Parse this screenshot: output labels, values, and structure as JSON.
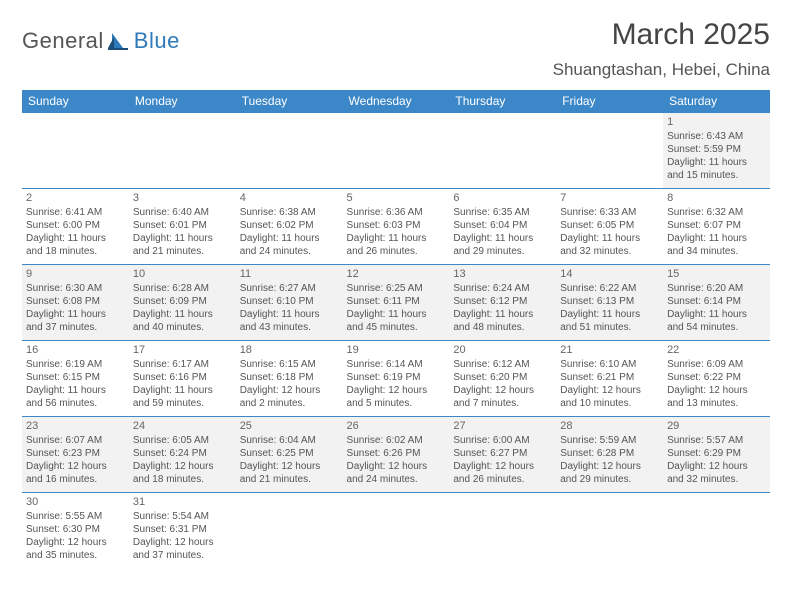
{
  "logo": {
    "part1": "General",
    "part2": "Blue"
  },
  "title": "March 2025",
  "location": "Shuangtashan, Hebei, China",
  "colors": {
    "header_bg": "#3b87c8",
    "header_fg": "#ffffff",
    "row_alt_bg": "#f2f2f2",
    "border": "#3b87c8",
    "logo_gray": "#555555",
    "logo_blue": "#2f7ab8"
  },
  "weekdays": [
    "Sunday",
    "Monday",
    "Tuesday",
    "Wednesday",
    "Thursday",
    "Friday",
    "Saturday"
  ],
  "first_weekday_index": 6,
  "days": [
    {
      "n": 1,
      "sunrise": "6:43 AM",
      "sunset": "5:59 PM",
      "daylight": "11 hours and 15 minutes."
    },
    {
      "n": 2,
      "sunrise": "6:41 AM",
      "sunset": "6:00 PM",
      "daylight": "11 hours and 18 minutes."
    },
    {
      "n": 3,
      "sunrise": "6:40 AM",
      "sunset": "6:01 PM",
      "daylight": "11 hours and 21 minutes."
    },
    {
      "n": 4,
      "sunrise": "6:38 AM",
      "sunset": "6:02 PM",
      "daylight": "11 hours and 24 minutes."
    },
    {
      "n": 5,
      "sunrise": "6:36 AM",
      "sunset": "6:03 PM",
      "daylight": "11 hours and 26 minutes."
    },
    {
      "n": 6,
      "sunrise": "6:35 AM",
      "sunset": "6:04 PM",
      "daylight": "11 hours and 29 minutes."
    },
    {
      "n": 7,
      "sunrise": "6:33 AM",
      "sunset": "6:05 PM",
      "daylight": "11 hours and 32 minutes."
    },
    {
      "n": 8,
      "sunrise": "6:32 AM",
      "sunset": "6:07 PM",
      "daylight": "11 hours and 34 minutes."
    },
    {
      "n": 9,
      "sunrise": "6:30 AM",
      "sunset": "6:08 PM",
      "daylight": "11 hours and 37 minutes."
    },
    {
      "n": 10,
      "sunrise": "6:28 AM",
      "sunset": "6:09 PM",
      "daylight": "11 hours and 40 minutes."
    },
    {
      "n": 11,
      "sunrise": "6:27 AM",
      "sunset": "6:10 PM",
      "daylight": "11 hours and 43 minutes."
    },
    {
      "n": 12,
      "sunrise": "6:25 AM",
      "sunset": "6:11 PM",
      "daylight": "11 hours and 45 minutes."
    },
    {
      "n": 13,
      "sunrise": "6:24 AM",
      "sunset": "6:12 PM",
      "daylight": "11 hours and 48 minutes."
    },
    {
      "n": 14,
      "sunrise": "6:22 AM",
      "sunset": "6:13 PM",
      "daylight": "11 hours and 51 minutes."
    },
    {
      "n": 15,
      "sunrise": "6:20 AM",
      "sunset": "6:14 PM",
      "daylight": "11 hours and 54 minutes."
    },
    {
      "n": 16,
      "sunrise": "6:19 AM",
      "sunset": "6:15 PM",
      "daylight": "11 hours and 56 minutes."
    },
    {
      "n": 17,
      "sunrise": "6:17 AM",
      "sunset": "6:16 PM",
      "daylight": "11 hours and 59 minutes."
    },
    {
      "n": 18,
      "sunrise": "6:15 AM",
      "sunset": "6:18 PM",
      "daylight": "12 hours and 2 minutes."
    },
    {
      "n": 19,
      "sunrise": "6:14 AM",
      "sunset": "6:19 PM",
      "daylight": "12 hours and 5 minutes."
    },
    {
      "n": 20,
      "sunrise": "6:12 AM",
      "sunset": "6:20 PM",
      "daylight": "12 hours and 7 minutes."
    },
    {
      "n": 21,
      "sunrise": "6:10 AM",
      "sunset": "6:21 PM",
      "daylight": "12 hours and 10 minutes."
    },
    {
      "n": 22,
      "sunrise": "6:09 AM",
      "sunset": "6:22 PM",
      "daylight": "12 hours and 13 minutes."
    },
    {
      "n": 23,
      "sunrise": "6:07 AM",
      "sunset": "6:23 PM",
      "daylight": "12 hours and 16 minutes."
    },
    {
      "n": 24,
      "sunrise": "6:05 AM",
      "sunset": "6:24 PM",
      "daylight": "12 hours and 18 minutes."
    },
    {
      "n": 25,
      "sunrise": "6:04 AM",
      "sunset": "6:25 PM",
      "daylight": "12 hours and 21 minutes."
    },
    {
      "n": 26,
      "sunrise": "6:02 AM",
      "sunset": "6:26 PM",
      "daylight": "12 hours and 24 minutes."
    },
    {
      "n": 27,
      "sunrise": "6:00 AM",
      "sunset": "6:27 PM",
      "daylight": "12 hours and 26 minutes."
    },
    {
      "n": 28,
      "sunrise": "5:59 AM",
      "sunset": "6:28 PM",
      "daylight": "12 hours and 29 minutes."
    },
    {
      "n": 29,
      "sunrise": "5:57 AM",
      "sunset": "6:29 PM",
      "daylight": "12 hours and 32 minutes."
    },
    {
      "n": 30,
      "sunrise": "5:55 AM",
      "sunset": "6:30 PM",
      "daylight": "12 hours and 35 minutes."
    },
    {
      "n": 31,
      "sunrise": "5:54 AM",
      "sunset": "6:31 PM",
      "daylight": "12 hours and 37 minutes."
    }
  ],
  "labels": {
    "sunrise_prefix": "Sunrise: ",
    "sunset_prefix": "Sunset: ",
    "daylight_prefix": "Daylight: "
  }
}
